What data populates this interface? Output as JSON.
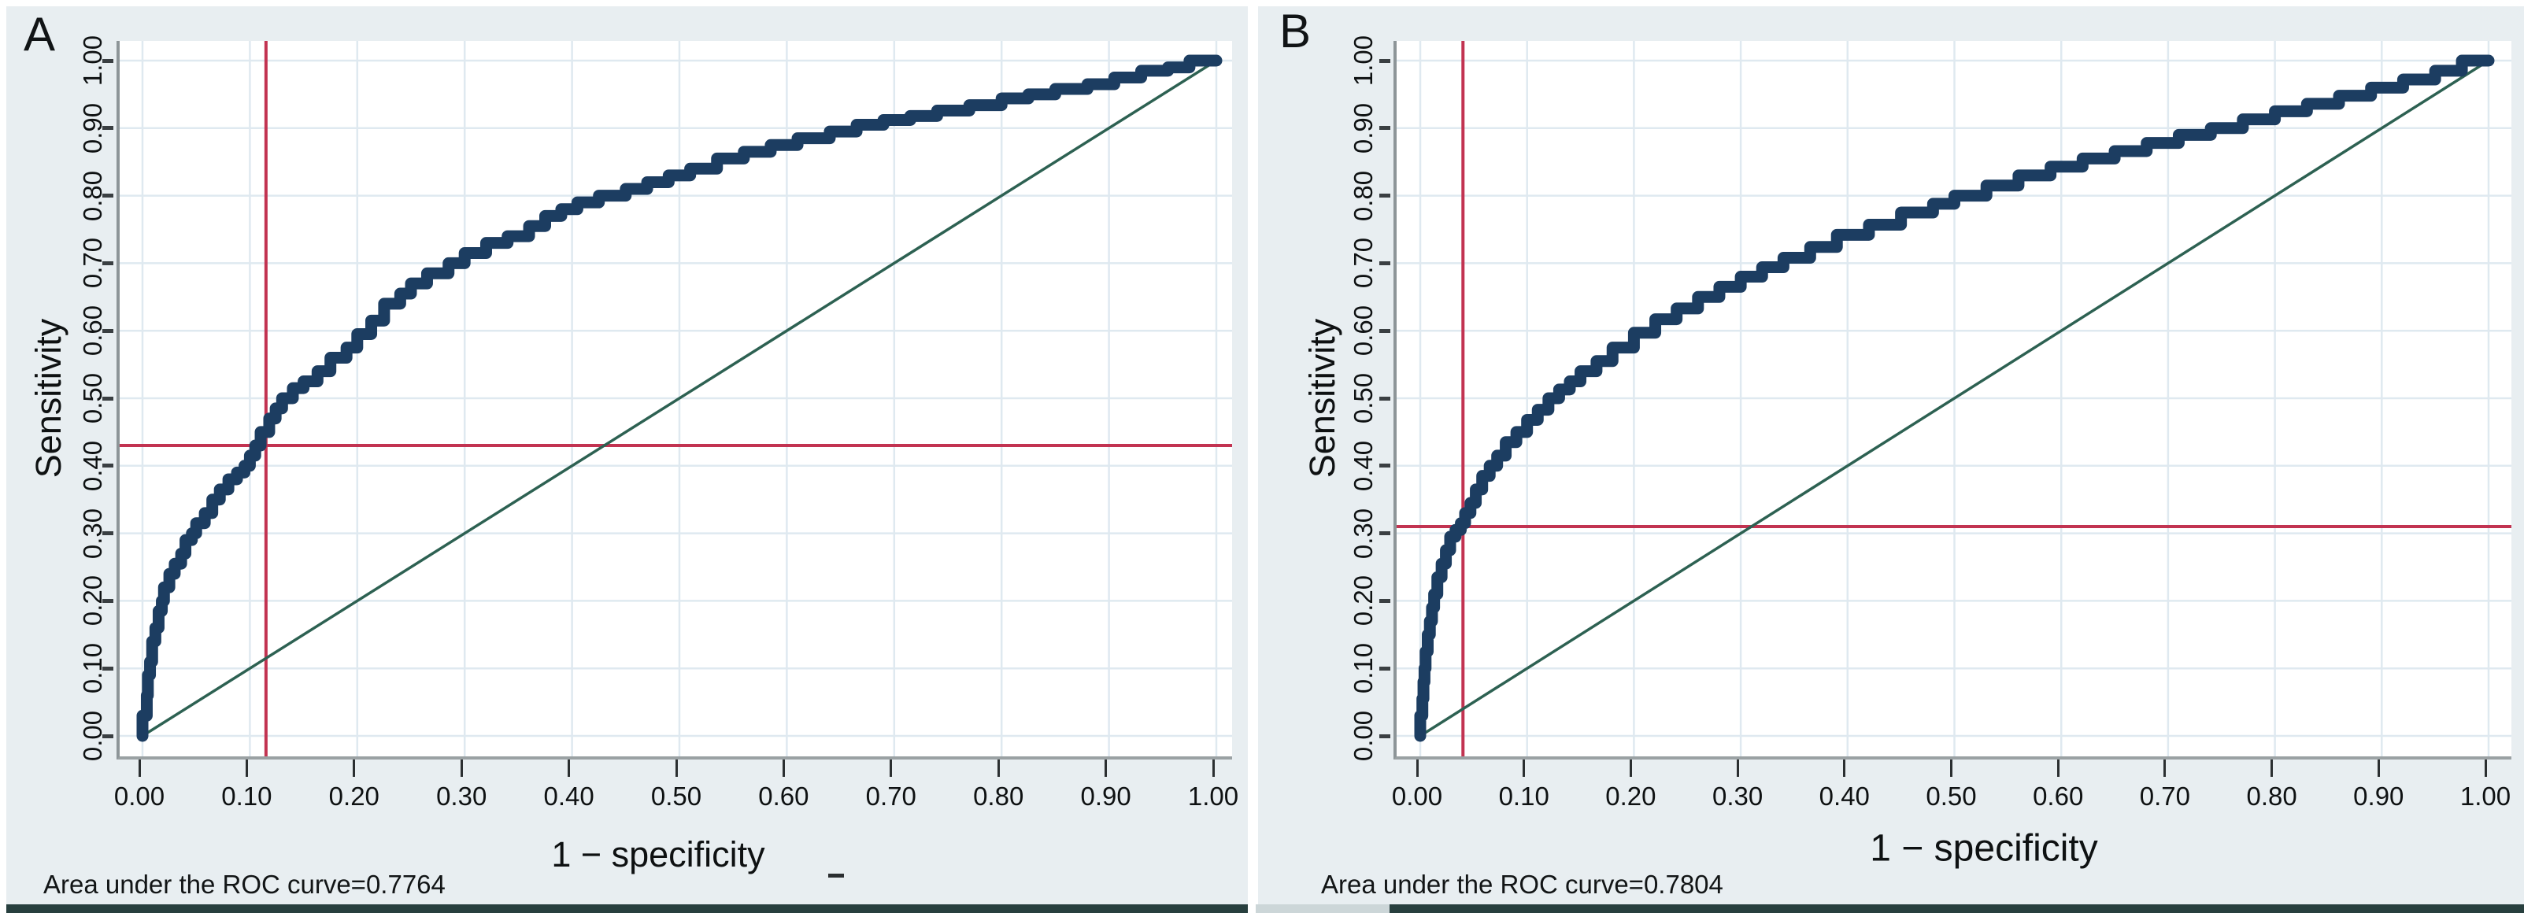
{
  "figure": {
    "panels": [
      {
        "label": "A",
        "caption": "Area under the ROC curve=0.7764",
        "auc": 0.7764,
        "x_label": "1 − specificity",
        "y_label": "Sensitivity",
        "x_ticks": [
          "0.00",
          "0.10",
          "0.20",
          "0.30",
          "0.40",
          "0.50",
          "0.60",
          "0.70",
          "0.80",
          "0.90",
          "1.00"
        ],
        "y_ticks": [
          "0.00",
          "0.10",
          "0.20",
          "0.30",
          "0.40",
          "0.50",
          "0.60",
          "0.70",
          "0.80",
          "0.90",
          "1.00"
        ],
        "cutoff": {
          "fpr": 0.115,
          "sensitivity": 0.43
        }
      },
      {
        "label": "B",
        "caption": "Area under the ROC curve=0.7804",
        "auc": 0.7804,
        "x_label": "1 − specificity",
        "y_label": "Sensitivity",
        "x_ticks": [
          "0.00",
          "0.10",
          "0.20",
          "0.30",
          "0.40",
          "0.50",
          "0.60",
          "0.70",
          "0.80",
          "0.90",
          "1.00"
        ],
        "y_ticks": [
          "0.00",
          "0.10",
          "0.20",
          "0.30",
          "0.40",
          "0.50",
          "0.60",
          "0.70",
          "0.80",
          "0.90",
          "1.00"
        ],
        "cutoff": {
          "fpr": 0.04,
          "sensitivity": 0.31
        }
      }
    ]
  },
  "colors": {
    "panel_background": "#e8eef1",
    "plot_background": "#ffffff",
    "grid": "#dfe9f0",
    "roc_curve": "#1c3d61",
    "reference_line": "#2d6152",
    "cutoff_line": "#c23351",
    "axis": "#8d9598",
    "text": "#0e1112",
    "bottom_bar_dark": "#273f3e",
    "bottom_bar_light": "#ccd6d8"
  },
  "chart_data": [
    {
      "type": "line",
      "title": "Panel A ROC curve",
      "xlabel": "1 − specificity",
      "ylabel": "Sensitivity",
      "xlim": [
        0,
        1
      ],
      "ylim": [
        0,
        1
      ],
      "grid": true,
      "annotations": {
        "auc_text": "Area under the ROC curve=0.7764",
        "cutoff_vline_x": 0.115,
        "cutoff_hline_y": 0.43
      },
      "series": [
        {
          "name": "ROC curve",
          "points": [
            [
              0,
              0
            ],
            [
              0.004,
              0.03
            ],
            [
              0.005,
              0.06
            ],
            [
              0.007,
              0.09
            ],
            [
              0.009,
              0.11
            ],
            [
              0.012,
              0.14
            ],
            [
              0.015,
              0.16
            ],
            [
              0.018,
              0.185
            ],
            [
              0.02,
              0.2
            ],
            [
              0.025,
              0.22
            ],
            [
              0.03,
              0.24
            ],
            [
              0.036,
              0.255
            ],
            [
              0.04,
              0.27
            ],
            [
              0.046,
              0.29
            ],
            [
              0.05,
              0.3
            ],
            [
              0.058,
              0.315
            ],
            [
              0.065,
              0.33
            ],
            [
              0.072,
              0.35
            ],
            [
              0.08,
              0.365
            ],
            [
              0.088,
              0.38
            ],
            [
              0.095,
              0.39
            ],
            [
              0.1,
              0.4
            ],
            [
              0.105,
              0.415
            ],
            [
              0.11,
              0.43
            ],
            [
              0.118,
              0.45
            ],
            [
              0.124,
              0.47
            ],
            [
              0.13,
              0.485
            ],
            [
              0.14,
              0.5
            ],
            [
              0.15,
              0.515
            ],
            [
              0.163,
              0.525
            ],
            [
              0.175,
              0.54
            ],
            [
              0.19,
              0.56
            ],
            [
              0.2,
              0.575
            ],
            [
              0.213,
              0.595
            ],
            [
              0.225,
              0.615
            ],
            [
              0.24,
              0.64
            ],
            [
              0.25,
              0.655
            ],
            [
              0.265,
              0.67
            ],
            [
              0.285,
              0.685
            ],
            [
              0.3,
              0.7
            ],
            [
              0.32,
              0.715
            ],
            [
              0.34,
              0.73
            ],
            [
              0.36,
              0.74
            ],
            [
              0.375,
              0.755
            ],
            [
              0.39,
              0.77
            ],
            [
              0.405,
              0.78
            ],
            [
              0.425,
              0.79
            ],
            [
              0.45,
              0.8
            ],
            [
              0.47,
              0.81
            ],
            [
              0.49,
              0.82
            ],
            [
              0.51,
              0.83
            ],
            [
              0.535,
              0.84
            ],
            [
              0.56,
              0.855
            ],
            [
              0.585,
              0.865
            ],
            [
              0.61,
              0.875
            ],
            [
              0.64,
              0.885
            ],
            [
              0.665,
              0.895
            ],
            [
              0.69,
              0.905
            ],
            [
              0.715,
              0.912
            ],
            [
              0.74,
              0.918
            ],
            [
              0.77,
              0.926
            ],
            [
              0.8,
              0.934
            ],
            [
              0.825,
              0.944
            ],
            [
              0.85,
              0.95
            ],
            [
              0.88,
              0.958
            ],
            [
              0.905,
              0.965
            ],
            [
              0.93,
              0.975
            ],
            [
              0.955,
              0.985
            ],
            [
              0.975,
              0.99
            ],
            [
              1,
              1
            ]
          ]
        },
        {
          "name": "Reference diagonal",
          "points": [
            [
              0,
              0
            ],
            [
              1,
              1
            ]
          ]
        }
      ]
    },
    {
      "type": "line",
      "title": "Panel B ROC curve",
      "xlabel": "1 − specificity",
      "ylabel": "Sensitivity",
      "xlim": [
        0,
        1
      ],
      "ylim": [
        0,
        1
      ],
      "grid": true,
      "annotations": {
        "auc_text": "Area under the ROC curve=0.7804",
        "cutoff_vline_x": 0.04,
        "cutoff_hline_y": 0.31
      },
      "series": [
        {
          "name": "ROC curve",
          "points": [
            [
              0,
              0
            ],
            [
              0.002,
              0.03
            ],
            [
              0.003,
              0.055
            ],
            [
              0.004,
              0.08
            ],
            [
              0.005,
              0.1
            ],
            [
              0.007,
              0.125
            ],
            [
              0.009,
              0.15
            ],
            [
              0.011,
              0.17
            ],
            [
              0.013,
              0.19
            ],
            [
              0.016,
              0.21
            ],
            [
              0.02,
              0.235
            ],
            [
              0.024,
              0.255
            ],
            [
              0.028,
              0.275
            ],
            [
              0.033,
              0.295
            ],
            [
              0.038,
              0.305
            ],
            [
              0.042,
              0.315
            ],
            [
              0.047,
              0.33
            ],
            [
              0.052,
              0.345
            ],
            [
              0.058,
              0.365
            ],
            [
              0.065,
              0.385
            ],
            [
              0.072,
              0.4
            ],
            [
              0.08,
              0.415
            ],
            [
              0.09,
              0.435
            ],
            [
              0.1,
              0.45
            ],
            [
              0.11,
              0.468
            ],
            [
              0.12,
              0.483
            ],
            [
              0.13,
              0.5
            ],
            [
              0.14,
              0.513
            ],
            [
              0.15,
              0.525
            ],
            [
              0.165,
              0.54
            ],
            [
              0.18,
              0.555
            ],
            [
              0.2,
              0.575
            ],
            [
              0.22,
              0.597
            ],
            [
              0.24,
              0.617
            ],
            [
              0.26,
              0.633
            ],
            [
              0.28,
              0.65
            ],
            [
              0.3,
              0.665
            ],
            [
              0.32,
              0.68
            ],
            [
              0.34,
              0.694
            ],
            [
              0.365,
              0.708
            ],
            [
              0.39,
              0.724
            ],
            [
              0.42,
              0.742
            ],
            [
              0.45,
              0.757
            ],
            [
              0.48,
              0.775
            ],
            [
              0.5,
              0.788
            ],
            [
              0.53,
              0.8
            ],
            [
              0.56,
              0.815
            ],
            [
              0.59,
              0.83
            ],
            [
              0.62,
              0.843
            ],
            [
              0.65,
              0.855
            ],
            [
              0.68,
              0.866
            ],
            [
              0.71,
              0.878
            ],
            [
              0.74,
              0.89
            ],
            [
              0.77,
              0.9
            ],
            [
              0.8,
              0.913
            ],
            [
              0.83,
              0.925
            ],
            [
              0.86,
              0.936
            ],
            [
              0.89,
              0.948
            ],
            [
              0.92,
              0.96
            ],
            [
              0.95,
              0.972
            ],
            [
              0.975,
              0.985
            ],
            [
              1,
              1
            ]
          ]
        },
        {
          "name": "Reference diagonal",
          "points": [
            [
              0,
              0
            ],
            [
              1,
              1
            ]
          ]
        }
      ]
    }
  ]
}
